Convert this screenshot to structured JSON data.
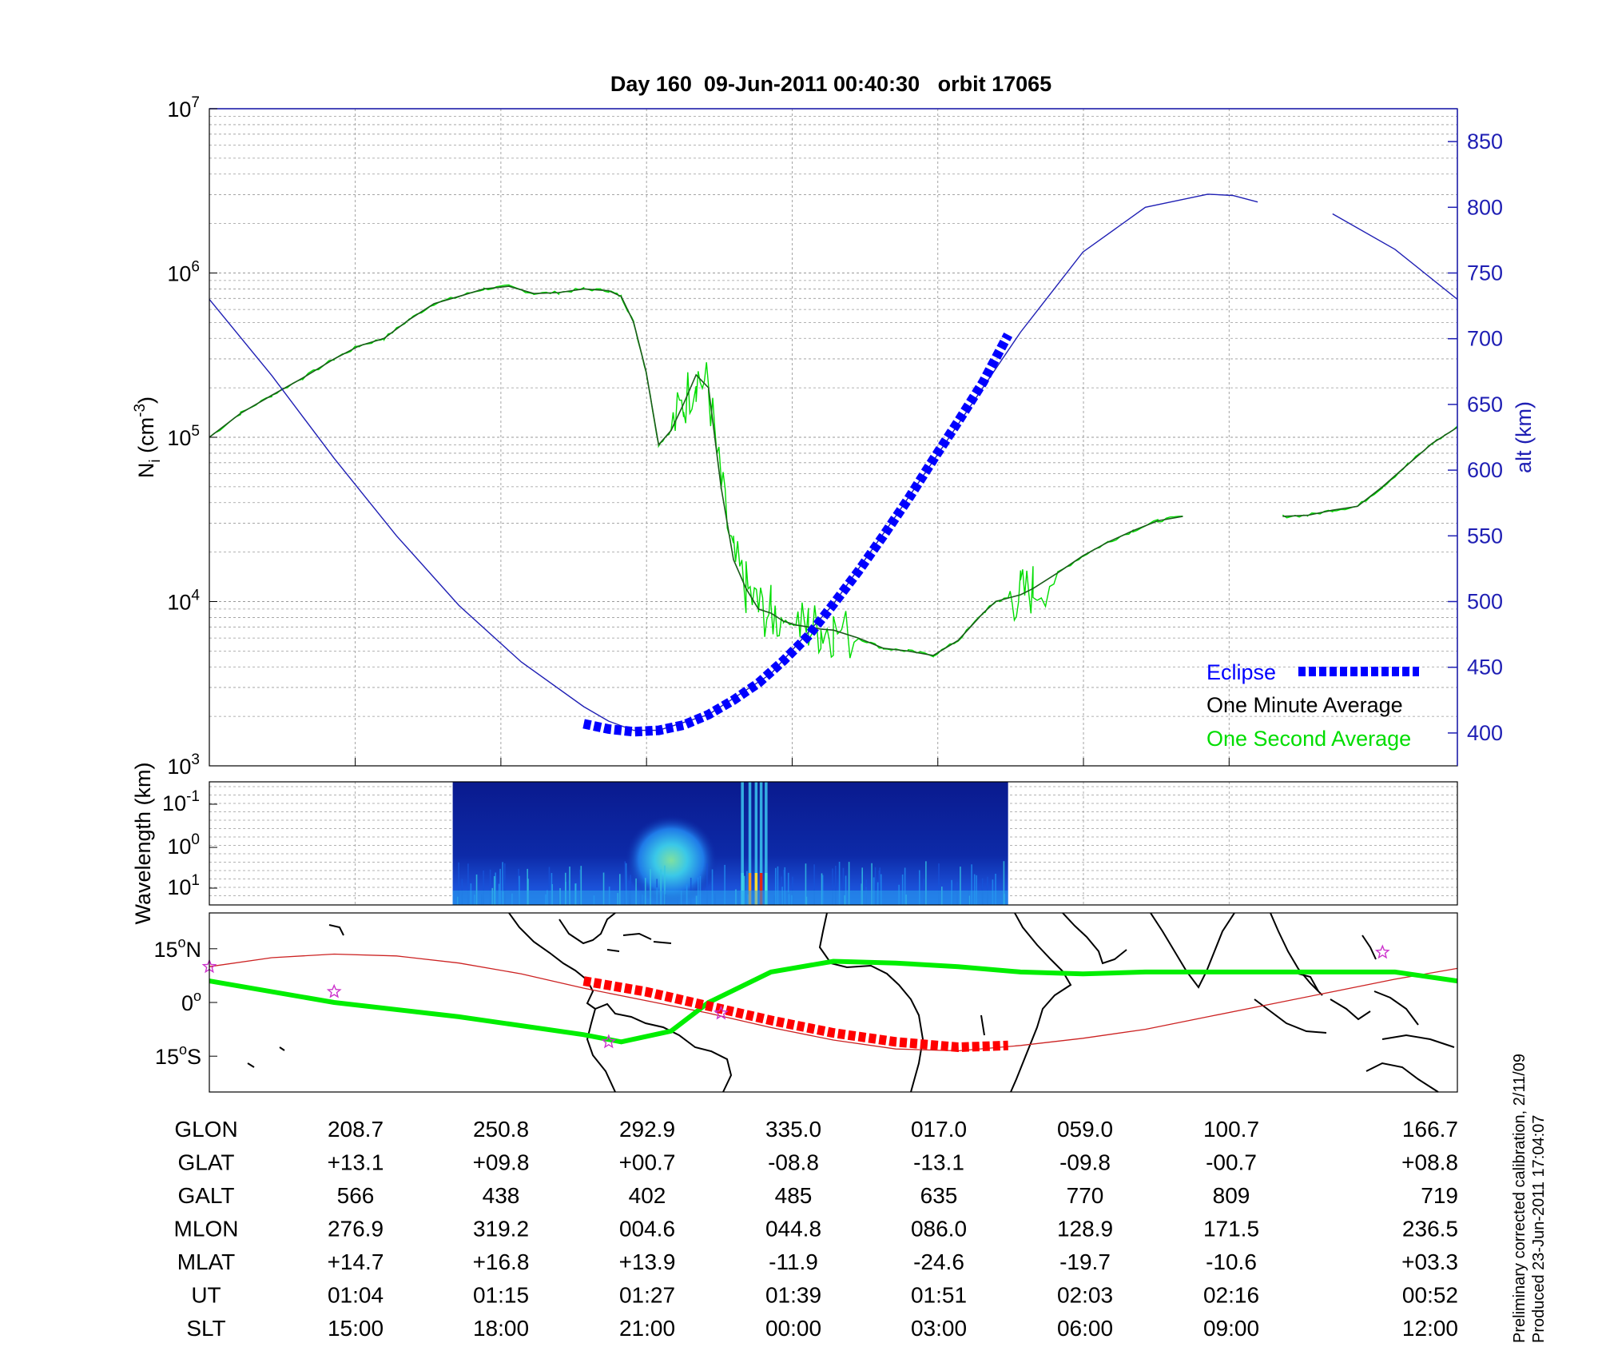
{
  "chart_data": [
    {
      "type": "line",
      "panel": "density-altitude",
      "title": "Day 160  09-Jun-2011 00:40:30   orbit 17065",
      "ylabel": "N",
      "ylabel_sub": "i",
      "ylabel_unit_pre": " (cm",
      "ylabel_unit_sup": "-3",
      "ylabel_unit_post": ")",
      "y_scale": "log",
      "ylim": [
        1000,
        10000000
      ],
      "y_ticks": [
        {
          "base": "10",
          "exp": "3"
        },
        {
          "base": "10",
          "exp": "4"
        },
        {
          "base": "10",
          "exp": "5"
        },
        {
          "base": "10",
          "exp": "6"
        },
        {
          "base": "10",
          "exp": "7"
        }
      ],
      "y2label": "alt (km)",
      "y2lim": [
        375,
        875
      ],
      "y2_ticks": [
        "400",
        "450",
        "500",
        "550",
        "600",
        "650",
        "700",
        "750",
        "800",
        "850"
      ],
      "xlim": [
        0,
        1
      ],
      "x_ticks": [
        0.1169,
        0.2336,
        0.3503,
        0.467,
        0.5837,
        0.7004,
        0.8171
      ],
      "grid": true,
      "legend_placement": "bottom-right",
      "legend": [
        {
          "label": "Eclipse",
          "color": "#0000ff"
        },
        {
          "label": "One Minute Average",
          "color": "#000000"
        },
        {
          "label": "One Second Average",
          "color": "#00dd00"
        }
      ],
      "series": [
        {
          "name": "One Minute Average",
          "color": "#1a5c1a",
          "x": [
            0,
            0.025,
            0.05,
            0.075,
            0.1,
            0.12,
            0.14,
            0.16,
            0.18,
            0.2,
            0.22,
            0.24,
            0.26,
            0.28,
            0.3,
            0.32,
            0.33,
            0.34,
            0.35,
            0.36,
            0.37,
            0.38,
            0.39,
            0.4,
            0.41,
            0.42,
            0.43,
            0.44,
            0.45,
            0.46,
            0.47,
            0.48,
            0.49,
            0.5,
            0.52,
            0.54,
            0.56,
            0.58,
            0.6,
            0.62,
            0.63,
            0.64,
            0.65,
            0.66,
            0.68,
            0.7,
            0.72,
            0.74,
            0.76,
            0.78,
            0.8,
            0.82,
            0.84,
            0.86,
            0.88,
            0.9,
            0.92,
            0.94,
            0.96,
            0.98,
            1.0
          ],
          "y": [
            100000,
            140000,
            180000,
            230000,
            300000,
            360000,
            400000,
            520000,
            650000,
            720000,
            800000,
            830000,
            750000,
            760000,
            800000,
            780000,
            720000,
            500000,
            250000,
            90000,
            110000,
            160000,
            240000,
            200000,
            50000,
            18000,
            12000,
            9000,
            8500,
            7600,
            7200,
            7000,
            6800,
            6700,
            6000,
            5200,
            5000,
            4700,
            5800,
            8500,
            10000,
            10500,
            11000,
            12000,
            15000,
            19000,
            23000,
            27000,
            31000,
            33000,
            null,
            null,
            null,
            33000,
            33500,
            36000,
            38000,
            50000,
            68000,
            92000,
            115000
          ]
        },
        {
          "name": "Altitude",
          "color": "#1f1fb4",
          "x": [
            0,
            0.05,
            0.1,
            0.15,
            0.2,
            0.25,
            0.3,
            0.32,
            0.34,
            0.36,
            0.4,
            0.45,
            0.5,
            0.55,
            0.6,
            0.65,
            0.7,
            0.75,
            0.8,
            0.82,
            0.84,
            0.86,
            0.9,
            0.95,
            1.0
          ],
          "y": [
            730,
            672,
            609,
            550,
            497,
            454,
            420,
            409,
            402,
            402,
            414,
            445,
            498,
            565,
            635,
            705,
            766,
            800,
            810,
            809,
            804,
            null,
            795,
            768,
            730
          ]
        },
        {
          "name": "Eclipse",
          "color": "#0000ff",
          "x": [
            0.3,
            0.32,
            0.34,
            0.36,
            0.38,
            0.4,
            0.42,
            0.44,
            0.46,
            0.48,
            0.5,
            0.52,
            0.54,
            0.56,
            0.58,
            0.6,
            0.62,
            0.64
          ],
          "y": [
            407,
            403,
            401,
            402,
            406,
            414,
            425,
            438,
            455,
            474,
            498,
            523,
            550,
            578,
            608,
            637,
            667,
            703
          ]
        }
      ]
    },
    {
      "type": "heatmap",
      "panel": "wavelength-spectrogram",
      "ylabel": "Wavelength (km)",
      "y_ticks": [
        {
          "base": "10",
          "exp": "-1"
        },
        {
          "base": "10",
          "exp": "0"
        },
        {
          "base": "10",
          "exp": "1"
        }
      ],
      "xlim": [
        0,
        1
      ],
      "data_range": [
        0.195,
        0.64
      ]
    },
    {
      "type": "line",
      "panel": "ground-track-map",
      "y_ticks": [
        {
          "value": "15",
          "suffix": "N"
        },
        {
          "value": "0",
          "suffix": ""
        },
        {
          "value": "15",
          "suffix": "S"
        }
      ],
      "ylim": [
        -25,
        25
      ],
      "series": [
        {
          "name": "Magnetic equator",
          "color": "#00ee00",
          "x": [
            0,
            0.1,
            0.2,
            0.3,
            0.33,
            0.37,
            0.4,
            0.45,
            0.5,
            0.55,
            0.6,
            0.65,
            0.7,
            0.75,
            0.8,
            0.85,
            0.9,
            0.95,
            1.0
          ],
          "y": [
            6,
            0,
            -4,
            -9,
            -11,
            -8,
            0,
            8.5,
            11.5,
            11,
            10,
            8.5,
            8,
            8.5,
            8.5,
            8.5,
            8.5,
            8.5,
            6
          ]
        },
        {
          "name": "Orbit ground track",
          "color": "#cc2222",
          "x": [
            0,
            0.05,
            0.1,
            0.15,
            0.2,
            0.25,
            0.3,
            0.35,
            0.4,
            0.45,
            0.5,
            0.55,
            0.6,
            0.65,
            0.7,
            0.75,
            0.8,
            0.85,
            0.9,
            0.95,
            1.0
          ],
          "y": [
            10,
            12.5,
            13.5,
            13,
            11,
            8,
            4,
            0.5,
            -3,
            -7,
            -10.5,
            -13,
            -13.5,
            -12,
            -10,
            -7.5,
            -4,
            -0.5,
            3,
            6.5,
            9.5
          ]
        },
        {
          "name": "Eclipse track",
          "color": "#ff0000",
          "x": [
            0.3,
            0.35,
            0.4,
            0.45,
            0.5,
            0.55,
            0.6,
            0.64
          ],
          "y": [
            6,
            3,
            -1,
            -5,
            -8.5,
            -11,
            -12.5,
            -12
          ]
        }
      ],
      "markers_x": [
        0,
        0.1,
        0.32,
        0.41,
        0.94
      ],
      "markers_y": [
        10,
        3,
        -11,
        -3,
        14
      ]
    }
  ],
  "table": {
    "rows": [
      {
        "label": "GLON",
        "values": [
          "208.7",
          "250.8",
          "292.9",
          "335.0",
          "017.0",
          "059.0",
          "100.7",
          "166.7"
        ]
      },
      {
        "label": "GLAT",
        "values": [
          "+13.1",
          "+09.8",
          "+00.7",
          "-08.8",
          "-13.1",
          "-09.8",
          "-00.7",
          "+08.8"
        ]
      },
      {
        "label": "GALT",
        "values": [
          "566",
          "438",
          "402",
          "485",
          "635",
          "770",
          "809",
          "719"
        ]
      },
      {
        "label": "MLON",
        "values": [
          "276.9",
          "319.2",
          "004.6",
          "044.8",
          "086.0",
          "128.9",
          "171.5",
          "236.5"
        ]
      },
      {
        "label": "MLAT",
        "values": [
          "+14.7",
          "+16.8",
          "+13.9",
          "-11.9",
          "-24.6",
          "-19.7",
          "-10.6",
          "+03.3"
        ]
      },
      {
        "label": "UT",
        "values": [
          "01:04",
          "01:15",
          "01:27",
          "01:39",
          "01:51",
          "02:03",
          "02:16",
          "00:52"
        ]
      },
      {
        "label": "SLT",
        "values": [
          "15:00",
          "18:00",
          "21:00",
          "00:00",
          "03:00",
          "06:00",
          "09:00",
          "12:00"
        ]
      }
    ]
  },
  "footer": {
    "line1": "Preliminary corrected calibration, 2/11/09",
    "line2": "Produced 23-Jun-2011 17:04:07"
  },
  "colors": {
    "density": "#1a5c1a",
    "one_second": "#00dd00",
    "altitude": "#1f1fb4",
    "eclipse": "#0000ff",
    "track": "#cc2222",
    "eclipse_track": "#ff0000",
    "mag_equator": "#00ee00",
    "spectrogram_bg": "#0a1d8c"
  }
}
